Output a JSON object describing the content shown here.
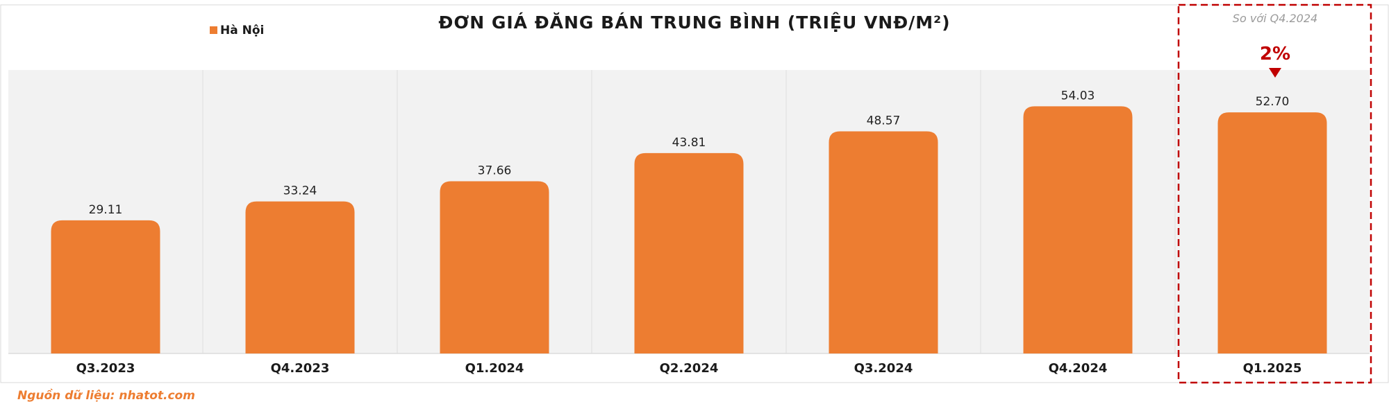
{
  "chart_data": {
    "type": "bar",
    "title": "ĐƠN GIÁ ĐĂNG BÁN TRUNG BÌNH (TRIỆU VNĐ/M²)",
    "legend": {
      "entries": [
        "Hà Nội"
      ],
      "placement": "top-left"
    },
    "categories": [
      "Q3.2023",
      "Q4.2023",
      "Q1.2024",
      "Q2.2024",
      "Q3.2024",
      "Q4.2024",
      "Q1.2025"
    ],
    "series": [
      {
        "name": "Hà Nội",
        "values": [
          29.11,
          33.24,
          37.66,
          43.81,
          48.57,
          54.03,
          52.7
        ],
        "color": "#ed7d31"
      }
    ],
    "value_labels": [
      "29.11",
      "33.24",
      "37.66",
      "43.81",
      "48.57",
      "54.03",
      "52.70"
    ],
    "ylim": [
      0,
      60
    ],
    "grid": false,
    "highlight": {
      "category": "Q1.2025",
      "note": "So với Q4.2024",
      "change": "2%",
      "direction": "down",
      "color": "#c00000"
    }
  },
  "source": "Nguồn dữ liệu: nhatot.com",
  "colors": {
    "bar": "#ed7d31",
    "plot_bg": "#f2f2f2",
    "highlight": "#c00000"
  }
}
